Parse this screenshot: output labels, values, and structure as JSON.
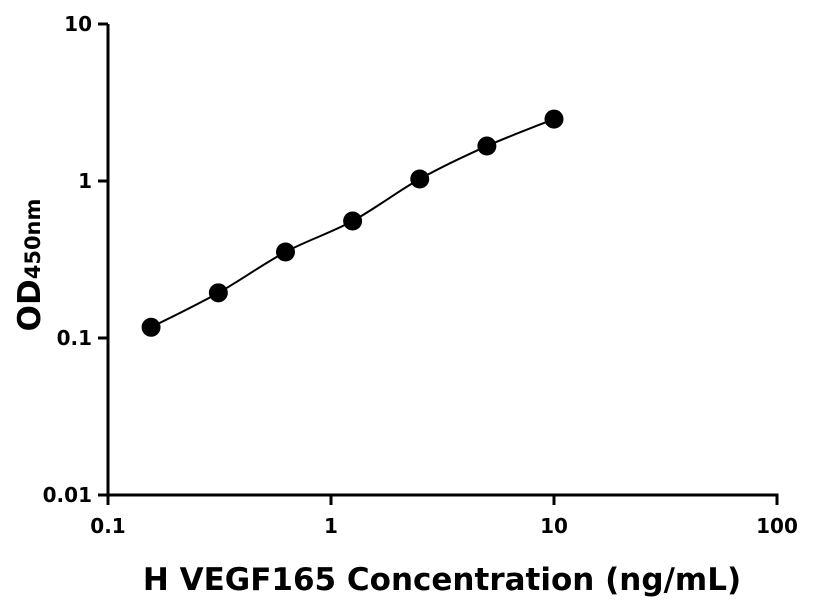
{
  "chart_data": {
    "type": "line",
    "title": "",
    "xlabel": "H VEGF165 Concentration (ng/mL)",
    "ylabel_main": "OD",
    "ylabel_sub": "450nm",
    "x_scale": "log",
    "y_scale": "log",
    "xlim": [
      0.1,
      100
    ],
    "ylim": [
      0.01,
      10
    ],
    "x_ticks": [
      0.1,
      1,
      10,
      100
    ],
    "x_tick_labels": [
      "0.1",
      "1",
      "10",
      "100"
    ],
    "y_ticks": [
      0.01,
      0.1,
      1,
      10
    ],
    "y_tick_labels": [
      "0.01",
      "0.1",
      "1",
      "10"
    ],
    "grid": false,
    "series": [
      {
        "x": [
          0.156,
          0.3125,
          0.625,
          1.25,
          2.5,
          5,
          10
        ],
        "y": [
          0.117,
          0.194,
          0.353,
          0.556,
          1.03,
          1.67,
          2.48
        ],
        "marker": "circle",
        "fitted_curve": true,
        "color": "#000000"
      }
    ]
  }
}
